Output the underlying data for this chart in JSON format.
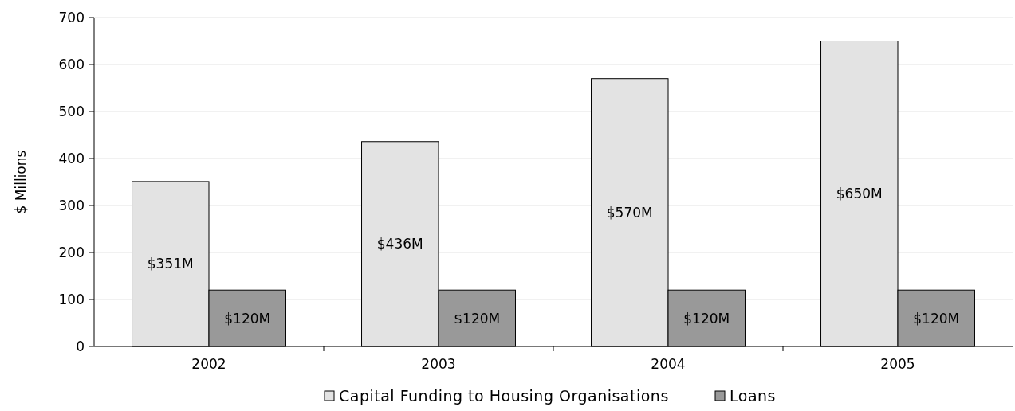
{
  "chart_data": {
    "type": "bar",
    "ylabel": "$ Millions",
    "categories": [
      "2002",
      "2003",
      "2004",
      "2005"
    ],
    "series": [
      {
        "name": "Capital Funding to Housing Organisations",
        "color": "#e3e3e3",
        "values": [
          351,
          436,
          570,
          650
        ],
        "value_labels": [
          "$351M",
          "$436M",
          "$570M",
          "$650M"
        ]
      },
      {
        "name": "Loans",
        "color": "#999999",
        "values": [
          120,
          120,
          120,
          120
        ],
        "value_labels": [
          "$120M",
          "$120M",
          "$120M",
          "$120M"
        ]
      }
    ],
    "ylim": [
      0,
      700
    ],
    "yticks": [
      0,
      100,
      200,
      300,
      400,
      500,
      600,
      700
    ],
    "grid": "y",
    "legend": "bottom"
  }
}
